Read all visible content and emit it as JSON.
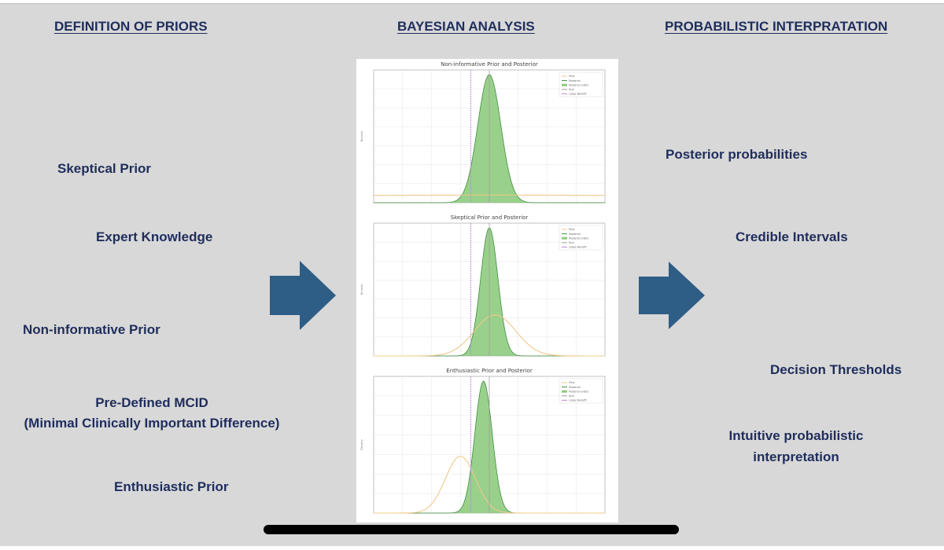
{
  "headings": {
    "left": "DEFINITION OF PRIORS",
    "center": "BAYESIAN ANALYSIS",
    "right": "PROBABILISTIC INTERPRATATION"
  },
  "priors": {
    "skeptical": "Skeptical Prior",
    "expert": "Expert Knowledge",
    "noninformative": "Non-informative Prior",
    "mcid_line1": "Pre-Defined MCID",
    "mcid_line2": "(Minimal Clinically Important Difference)",
    "enthusiastic": "Enthusiastic Prior"
  },
  "interpretation": {
    "posterior": "Posterior probabilities",
    "credible": "Credible Intervals",
    "thresholds": "Decision Thresholds",
    "intuitive_line1": "Intuitive probabilistic",
    "intuitive_line2": "interpretation"
  },
  "colors": {
    "heading_text": "#1f2d5c",
    "arrow_fill": "#2e5d86",
    "background": "#d8d8d8",
    "posterior_fill": "#8ecb7e",
    "posterior_line": "#3f8f3f",
    "prior_line": "#f0c88a",
    "null_line": "#9b9b9b",
    "mcid_line": "#c084d8"
  },
  "chart_data": [
    {
      "type": "area",
      "title": "Non-informative Prior and Posterior",
      "ylabel": "Density",
      "legend": [
        "Prior",
        "Posterior",
        "Posterior (HDI)",
        "Null",
        "Large Benefit"
      ],
      "legend_position": "top-right",
      "prior": {
        "mean": 0.0,
        "sd": 3.0
      },
      "posterior": {
        "mean": 0.0,
        "sd": 0.1
      },
      "prior_peak_fraction": 0.06,
      "xlim": [
        -1.0,
        1.0
      ],
      "null_x": 0.0,
      "mcid_x": -0.16
    },
    {
      "type": "area",
      "title": "Skeptical Prior and Posterior",
      "ylabel": "Density",
      "legend": [
        "Prior",
        "Posterior",
        "Posterior (HDI)",
        "Null",
        "Large Benefit"
      ],
      "legend_position": "top-right",
      "prior": {
        "mean": 0.05,
        "sd": 0.18
      },
      "posterior": {
        "mean": 0.0,
        "sd": 0.075
      },
      "prior_peak_fraction": 0.32,
      "xlim": [
        -1.0,
        1.0
      ],
      "null_x": 0.0,
      "mcid_x": -0.16
    },
    {
      "type": "area",
      "title": "Enthusiastic Prior and Posterior",
      "ylabel": "Density",
      "legend": [
        "Prior",
        "Posterior",
        "Posterior (HDI)",
        "Null",
        "Large Benefit"
      ],
      "legend_position": "top-right",
      "prior": {
        "mean": -0.25,
        "sd": 0.13
      },
      "posterior": {
        "mean": -0.05,
        "sd": 0.075
      },
      "prior_peak_fraction": 0.43,
      "xlim": [
        -1.0,
        1.0
      ],
      "null_x": 0.0,
      "mcid_x": -0.16
    }
  ]
}
